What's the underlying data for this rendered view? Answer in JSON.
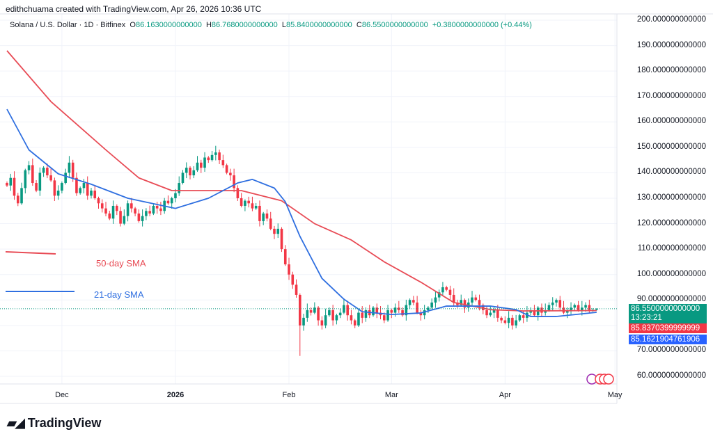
{
  "credit": "edithchuama created with TradingView.com, Apr 26, 2026 10:36 UTC",
  "legend": {
    "symbol": "Solana / U.S. Dollar · 1D · Bitfinex",
    "o_label": "O",
    "o": "86.1630000000000",
    "h_label": "H",
    "h": "86.7680000000000",
    "l_label": "L",
    "l": "85.8400000000000",
    "c_label": "C",
    "c": "86.5500000000000",
    "change": "+0.3800000000000 (+0.44%)"
  },
  "price_boxes": {
    "last": "86.5500000000000",
    "countdown": "13:23:21",
    "sma50": "85.8370399999999",
    "sma21": "85.1621904761906"
  },
  "logo": "TradingView",
  "colors": {
    "up": "#089981",
    "down": "#f23645",
    "sma50": "#e84b55",
    "sma21": "#2f6fe0"
  },
  "chart_data": {
    "type": "candlestick",
    "title": "Solana / U.S. Dollar · 1D · Bitfinex",
    "start_date": "2025-11-16",
    "ylim": [
      55,
      202
    ],
    "y_ticks": [
      "200.000000000000",
      "190.000000000000",
      "180.000000000000",
      "170.000000000000",
      "160.000000000000",
      "150.000000000000",
      "140.000000000000",
      "130.000000000000",
      "120.000000000000",
      "110.000000000000",
      "100.000000000000",
      "90.0000000000000",
      "70.0000000000000",
      "60.0000000000000"
    ],
    "y_tick_values": [
      200,
      190,
      180,
      170,
      160,
      150,
      140,
      130,
      120,
      110,
      100,
      90,
      70,
      60
    ],
    "x_ticks": [
      {
        "label": "Dec",
        "day": 15
      },
      {
        "label": "2026",
        "day": 46
      },
      {
        "label": "Feb",
        "day": 77
      },
      {
        "label": "Mar",
        "day": 105
      },
      {
        "label": "Apr",
        "day": 136
      },
      {
        "label": "May",
        "day": 166
      }
    ],
    "closes": [
      135,
      138,
      131,
      128,
      134,
      141,
      143,
      136,
      133,
      140,
      142,
      139,
      137,
      131,
      133,
      136,
      140,
      144,
      138,
      132,
      134,
      136,
      131,
      133,
      130,
      128,
      126,
      124,
      122,
      127,
      125,
      120,
      123,
      128,
      126,
      124,
      121,
      123,
      125,
      124,
      127,
      126,
      125,
      129,
      128,
      130,
      132,
      136,
      140,
      142,
      139,
      141,
      144,
      142,
      146,
      145,
      147,
      148,
      145,
      143,
      140,
      139,
      134,
      130,
      127,
      129,
      128,
      126,
      127,
      121,
      124,
      122,
      118,
      116,
      118,
      110,
      104,
      100,
      96,
      92,
      80,
      83,
      86,
      85,
      87,
      82,
      80,
      84,
      86,
      82,
      84,
      85,
      88,
      84,
      82,
      80,
      85,
      83,
      86,
      84,
      87,
      85,
      84,
      82,
      86,
      85,
      87,
      86,
      84,
      88,
      90,
      89,
      85,
      84,
      86,
      87,
      89,
      91,
      93,
      95,
      94,
      92,
      89,
      88,
      90,
      87,
      89,
      91,
      90,
      88,
      86,
      84,
      85,
      86,
      83,
      82,
      81,
      83,
      80,
      82,
      84,
      83,
      85,
      86,
      84,
      87,
      85,
      86,
      88,
      89,
      90,
      87,
      85,
      86,
      87,
      88,
      86,
      87,
      88,
      86,
      86.163,
      86.55
    ],
    "low_overrides": {
      "80": 68
    },
    "series": [
      {
        "name": "50-day SMA",
        "points": [
          [
            0,
            188
          ],
          [
            12,
            168
          ],
          [
            27,
            149
          ],
          [
            36,
            138
          ],
          [
            45,
            133
          ],
          [
            55,
            133
          ],
          [
            64,
            133
          ],
          [
            75,
            129
          ],
          [
            84,
            120
          ],
          [
            94,
            113.6
          ],
          [
            103,
            105
          ],
          [
            113,
            97
          ],
          [
            122,
            89
          ],
          [
            132,
            86.2
          ],
          [
            141,
            85.7
          ],
          [
            161,
            85.84
          ]
        ]
      },
      {
        "name": "21-day SMA",
        "points": [
          [
            0,
            165
          ],
          [
            6,
            149
          ],
          [
            14,
            139.6
          ],
          [
            23,
            135.5
          ],
          [
            33,
            130
          ],
          [
            46,
            126
          ],
          [
            55,
            130
          ],
          [
            63,
            136
          ],
          [
            67,
            137.4
          ],
          [
            73,
            134
          ],
          [
            76,
            128.6
          ],
          [
            80,
            115
          ],
          [
            86,
            98.5
          ],
          [
            92,
            90.3
          ],
          [
            97,
            85.4
          ],
          [
            105,
            84.3
          ],
          [
            113,
            84.9
          ],
          [
            120,
            87.6
          ],
          [
            132,
            87.6
          ],
          [
            139,
            86.2
          ],
          [
            143,
            83.5
          ],
          [
            150,
            83.5
          ],
          [
            161,
            85.16
          ]
        ]
      }
    ],
    "annotations": [
      "50-day SMA",
      "21-day SMA"
    ]
  }
}
